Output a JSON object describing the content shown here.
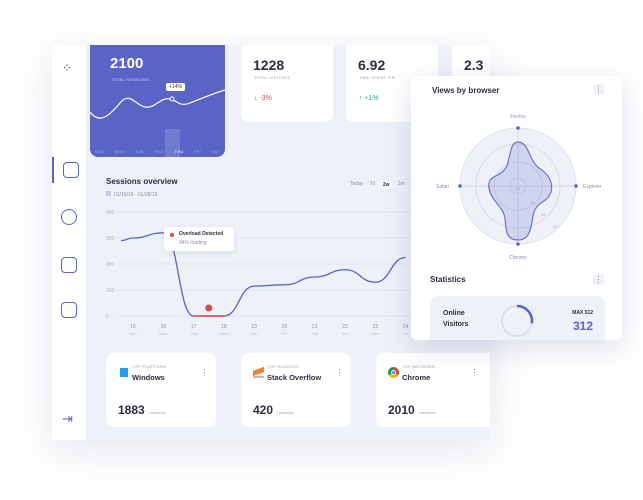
{
  "colors": {
    "accent": "#5a64c6",
    "down": "#e04848",
    "up": "#2bb673"
  },
  "sidebar": {
    "icons": [
      "home-icon",
      "compass-icon",
      "wallet-icon",
      "document-icon",
      "logout-icon"
    ]
  },
  "stats": {
    "sessions": {
      "value": "2100",
      "label": "TOTAL SESSIONS",
      "tooltip": "+14%",
      "days": [
        "SUN",
        "MON",
        "TUE",
        "WED",
        "THU",
        "FRI",
        "SAT"
      ],
      "selected_day": "THU"
    },
    "visitors": {
      "value": "1228",
      "label": "TOTAL VISITORS",
      "change": "↓ -3%"
    },
    "time": {
      "value": "6.92",
      "label": "TIME SPENT, HR",
      "change": "↑ +1%"
    },
    "fourth": {
      "value": "2.3"
    }
  },
  "overview": {
    "title": "Sessions overview",
    "date_range": "01/15/19 - 01/28/19",
    "ranges": [
      "Today",
      "7d",
      "2w",
      "1m"
    ],
    "selected_range": "2w",
    "tooltip_title": "Overload Detected",
    "tooltip_sub": "94% loading"
  },
  "chart_data": {
    "type": "line",
    "ylim": [
      0,
      400
    ],
    "yticks": [
      "0",
      "100",
      "200",
      "300",
      "400"
    ],
    "categories": [
      {
        "d": "15",
        "w": "Sun"
      },
      {
        "d": "16",
        "w": "Mon"
      },
      {
        "d": "17",
        "w": "Tue"
      },
      {
        "d": "18",
        "w": "Wed"
      },
      {
        "d": "19",
        "w": "Thu"
      },
      {
        "d": "20",
        "w": "Fri"
      },
      {
        "d": "21",
        "w": "Sat"
      },
      {
        "d": "22",
        "w": "Sun"
      },
      {
        "d": "23",
        "w": "Mon"
      },
      {
        "d": "24",
        "w": "Tue"
      }
    ],
    "values": [
      300,
      320,
      0,
      0,
      115,
      120,
      150,
      178,
      130,
      225
    ]
  },
  "browser": {
    "title": "Views by browser",
    "axes": [
      "Firefox",
      "Explorer",
      "Chrome",
      "Safari"
    ],
    "rings": [
      "10",
      "20",
      "30",
      "40"
    ]
  },
  "statistics": {
    "title": "Statistics",
    "online_label_1": "Online",
    "online_label_2": "Visitors",
    "max": "MAX 512",
    "value": "312",
    "fraction": 0.61
  },
  "bottom": [
    {
      "label": "TOP PLATFORM",
      "name": "Windows",
      "value": "1883",
      "unit": "/ sessions",
      "icon": "windows-icon"
    },
    {
      "label": "TOP SOURCES",
      "name": "Stack Overflow",
      "value": "420",
      "unit": "/ sessions",
      "icon": "stack-overflow-icon"
    },
    {
      "label": "TOP BROWSER",
      "name": "Chrome",
      "value": "2010",
      "unit": "/ sessions",
      "icon": "chrome-icon"
    }
  ]
}
